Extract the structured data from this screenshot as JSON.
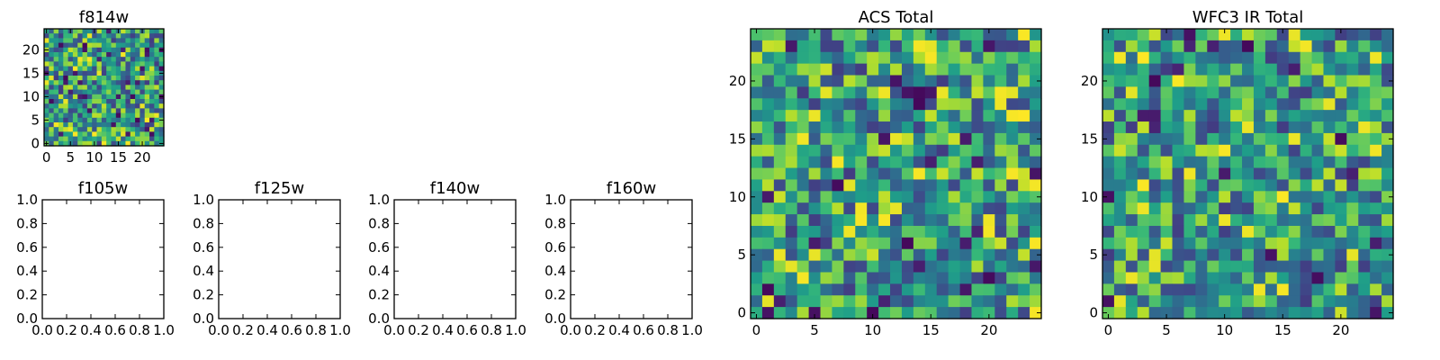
{
  "chart_data": [
    {
      "type": "heatmap",
      "title": "f814w",
      "xlim": [
        -0.5,
        24.5
      ],
      "ylim": [
        -0.5,
        24.5
      ],
      "xticks": [
        0,
        5,
        10,
        15,
        20
      ],
      "yticks": [
        0,
        5,
        10,
        15,
        20
      ],
      "colormap": "viridis",
      "grid_size": [
        25,
        25
      ],
      "seed": 814
    },
    {
      "type": "empty",
      "title": "f105w",
      "xlim": [
        0,
        1
      ],
      "ylim": [
        0,
        1
      ],
      "xticks": [
        "0.0",
        "0.2",
        "0.4",
        "0.6",
        "0.8",
        "1.0"
      ],
      "yticks": [
        "0.0",
        "0.2",
        "0.4",
        "0.6",
        "0.8",
        "1.0"
      ]
    },
    {
      "type": "empty",
      "title": "f125w",
      "xlim": [
        0,
        1
      ],
      "ylim": [
        0,
        1
      ],
      "xticks": [
        "0.0",
        "0.2",
        "0.4",
        "0.6",
        "0.8",
        "1.0"
      ],
      "yticks": [
        "0.0",
        "0.2",
        "0.4",
        "0.6",
        "0.8",
        "1.0"
      ]
    },
    {
      "type": "empty",
      "title": "f140w",
      "xlim": [
        0,
        1
      ],
      "ylim": [
        0,
        1
      ],
      "xticks": [
        "0.0",
        "0.2",
        "0.4",
        "0.6",
        "0.8",
        "1.0"
      ],
      "yticks": [
        "0.0",
        "0.2",
        "0.4",
        "0.6",
        "0.8",
        "1.0"
      ]
    },
    {
      "type": "empty",
      "title": "f160w",
      "xlim": [
        0,
        1
      ],
      "ylim": [
        0,
        1
      ],
      "xticks": [
        "0.0",
        "0.2",
        "0.4",
        "0.6",
        "0.8",
        "1.0"
      ],
      "yticks": [
        "0.0",
        "0.2",
        "0.4",
        "0.6",
        "0.8",
        "1.0"
      ]
    },
    {
      "type": "heatmap",
      "title": "ACS Total",
      "xlim": [
        -0.5,
        24.5
      ],
      "ylim": [
        -0.5,
        24.5
      ],
      "xticks": [
        0,
        5,
        10,
        15,
        20
      ],
      "yticks": [
        0,
        5,
        10,
        15,
        20
      ],
      "colormap": "viridis",
      "grid_size": [
        25,
        25
      ],
      "seed": 1234
    },
    {
      "type": "heatmap",
      "title": "WFC3 IR Total",
      "xlim": [
        -0.5,
        24.5
      ],
      "ylim": [
        -0.5,
        24.5
      ],
      "xticks": [
        0,
        5,
        10,
        15,
        20
      ],
      "yticks": [
        0,
        5,
        10,
        15,
        20
      ],
      "colormap": "viridis",
      "grid_size": [
        25,
        25
      ],
      "seed": 5678
    }
  ]
}
